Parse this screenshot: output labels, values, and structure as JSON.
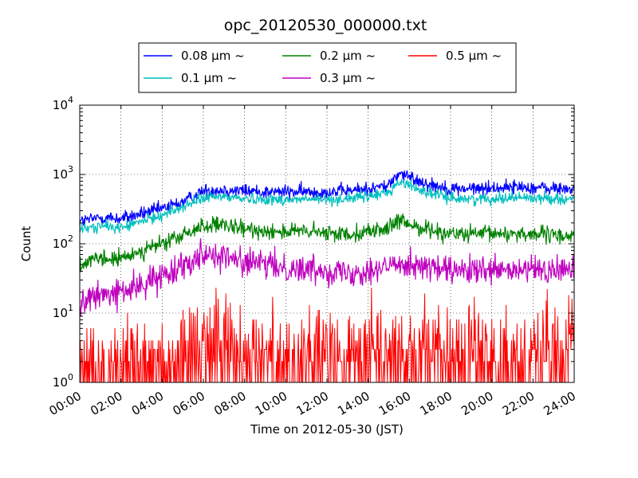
{
  "chart_data": {
    "type": "line",
    "title": "opc_20120530_000000.txt",
    "xlabel": "Time on 2012-05-30 (JST)",
    "ylabel": "Count",
    "yscale": "log",
    "xlim": [
      "00:00",
      "24:00"
    ],
    "ylim": [
      1,
      10000
    ],
    "grid": true,
    "legend_position": "top-center",
    "x_ticks": [
      "00:00",
      "02:00",
      "04:00",
      "06:00",
      "08:00",
      "10:00",
      "12:00",
      "14:00",
      "16:00",
      "18:00",
      "20:00",
      "22:00",
      "24:00"
    ],
    "y_ticks": [
      {
        "value": 1,
        "base": "10",
        "exp": "0"
      },
      {
        "value": 10,
        "base": "10",
        "exp": "1"
      },
      {
        "value": 100,
        "base": "10",
        "exp": "2"
      },
      {
        "value": 1000,
        "base": "10",
        "exp": "3"
      },
      {
        "value": 10000,
        "base": "10",
        "exp": "4"
      }
    ],
    "x": [
      "00:00",
      "01:00",
      "02:00",
      "03:00",
      "04:00",
      "05:00",
      "06:00",
      "07:00",
      "08:00",
      "09:00",
      "10:00",
      "11:00",
      "12:00",
      "13:00",
      "14:00",
      "15:00",
      "15:30",
      "16:00",
      "17:00",
      "18:00",
      "19:00",
      "20:00",
      "21:00",
      "22:00",
      "23:00",
      "24:00"
    ],
    "series": [
      {
        "name": "0.08 μm ~",
        "color": "#0000ff",
        "noise": 0.05,
        "values": [
          210,
          240,
          230,
          270,
          320,
          400,
          580,
          600,
          580,
          560,
          560,
          560,
          560,
          580,
          620,
          700,
          1050,
          900,
          720,
          620,
          620,
          640,
          660,
          650,
          620,
          620
        ]
      },
      {
        "name": "0.1 μm ~",
        "color": "#00bfbf",
        "noise": 0.04,
        "values": [
          160,
          180,
          170,
          210,
          260,
          340,
          460,
          480,
          450,
          440,
          430,
          440,
          430,
          450,
          480,
          560,
          780,
          700,
          530,
          460,
          440,
          450,
          470,
          460,
          450,
          440
        ]
      },
      {
        "name": "0.2 μm ~",
        "color": "#008000",
        "noise": 0.06,
        "values": [
          50,
          60,
          60,
          80,
          100,
          130,
          185,
          180,
          160,
          155,
          150,
          150,
          140,
          140,
          150,
          170,
          210,
          190,
          160,
          140,
          135,
          140,
          140,
          140,
          130,
          130
        ]
      },
      {
        "name": "0.3 μm ~",
        "color": "#bf00bf",
        "noise": 0.1,
        "values": [
          14,
          18,
          20,
          25,
          35,
          50,
          75,
          65,
          55,
          50,
          45,
          43,
          42,
          38,
          42,
          45,
          55,
          52,
          45,
          40,
          40,
          40,
          40,
          42,
          40,
          45
        ]
      },
      {
        "name": "0.5 μm ~",
        "color": "#ff0000",
        "noise": 0.35,
        "values": [
          2,
          2,
          2,
          2,
          2,
          2.5,
          5,
          4,
          3,
          2.5,
          2.5,
          2.5,
          2.5,
          2.5,
          2.5,
          3,
          3.5,
          3,
          2.5,
          2.5,
          2.5,
          3,
          2.5,
          2.5,
          3,
          3
        ]
      }
    ]
  }
}
